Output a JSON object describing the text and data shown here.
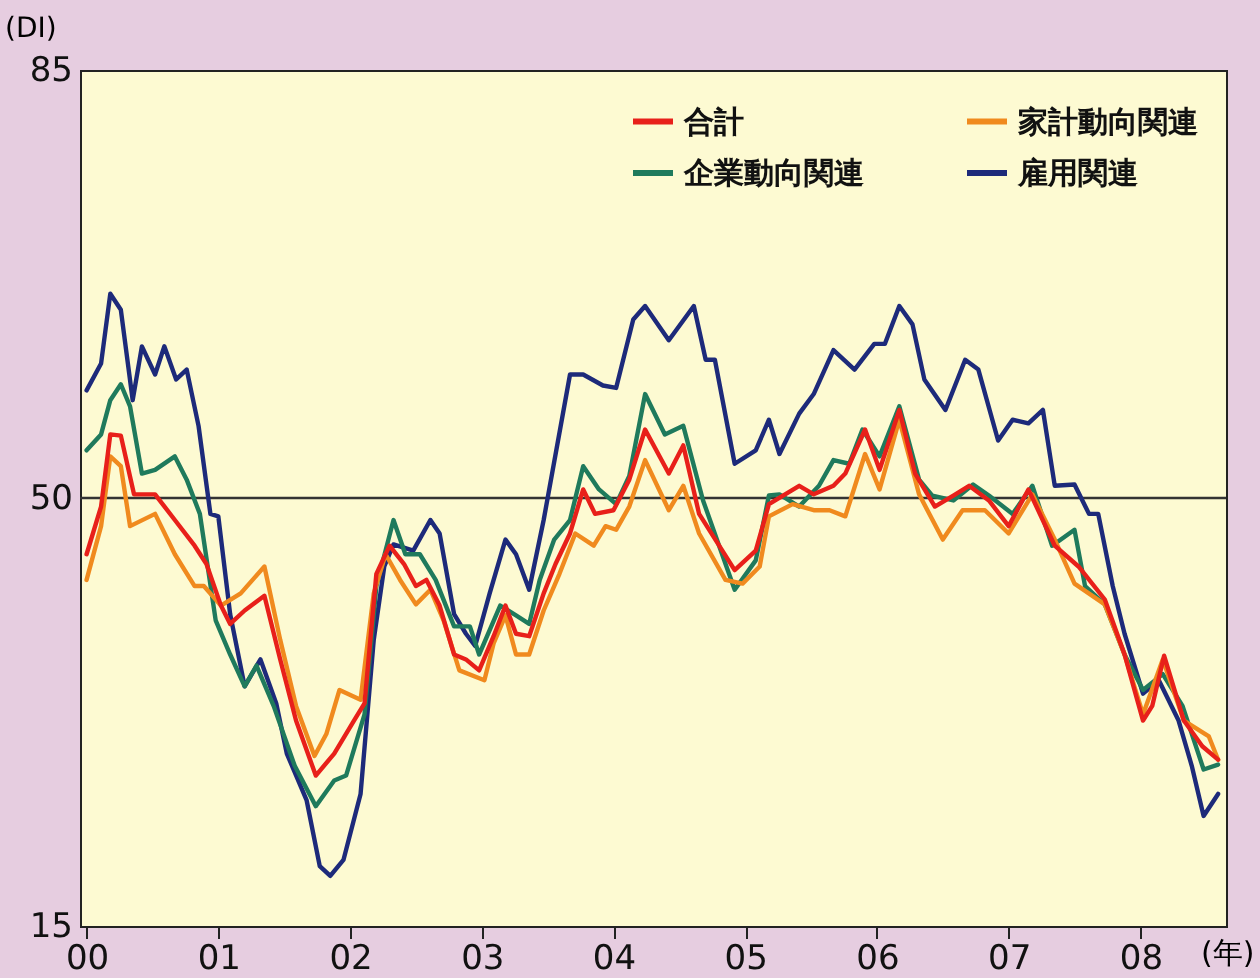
{
  "chart_data": {
    "type": "line",
    "ylabel": "(DI)",
    "xlabel": "(年)",
    "xlim": [
      1999.95,
      2008.65
    ],
    "ylim": [
      15,
      85
    ],
    "yticks": [
      15,
      50,
      85
    ],
    "xticks": [
      {
        "value": 2000,
        "label": "00"
      },
      {
        "value": 2001,
        "label": "01"
      },
      {
        "value": 2002,
        "label": "02"
      },
      {
        "value": 2003,
        "label": "03"
      },
      {
        "value": 2004,
        "label": "04"
      },
      {
        "value": 2005,
        "label": "05"
      },
      {
        "value": 2006,
        "label": "06"
      },
      {
        "value": 2007,
        "label": "07"
      },
      {
        "value": 2008,
        "label": "08"
      }
    ],
    "grid": false,
    "legend": "top right",
    "ref_lines": [
      {
        "axis": "y",
        "value": 50,
        "color": "#333333"
      }
    ],
    "series": [
      {
        "name": "合計",
        "color": "#e8201a",
        "x": [
          2000,
          2000.11,
          2000.18,
          2000.26,
          2000.36,
          2000.52,
          2000.67,
          2000.82,
          2000.91,
          2001.02,
          2001.09,
          2001.2,
          2001.35,
          2001.47,
          2001.59,
          2001.74,
          2001.88,
          2002.03,
          2002.11,
          2002.2,
          2002.3,
          2002.41,
          2002.5,
          2002.58,
          2002.68,
          2002.79,
          2002.88,
          2002.98,
          2003.09,
          2003.18,
          2003.26,
          2003.36,
          2003.47,
          2003.56,
          2003.67,
          2003.77,
          2003.86,
          2004,
          2004.12,
          2004.24,
          2004.42,
          2004.53,
          2004.65,
          2004.92,
          2005.08,
          2005.18,
          2005.41,
          2005.52,
          2005.67,
          2005.76,
          2005.91,
          2006.02,
          2006.17,
          2006.29,
          2006.44,
          2006.58,
          2006.7,
          2006.85,
          2007,
          2007.15,
          2007.35,
          2007.53,
          2007.73,
          2007.88,
          2008.02,
          2008.09,
          2008.18,
          2008.33,
          2008.47,
          2008.59
        ],
        "values": [
          45.4,
          49.3,
          55.2,
          55.1,
          50.3,
          50.3,
          48.2,
          46.1,
          44.6,
          41.2,
          39.7,
          40.8,
          42.0,
          36.8,
          31.8,
          27.3,
          29.1,
          31.8,
          33.2,
          43.8,
          46.1,
          44.6,
          42.8,
          43.3,
          41.2,
          37.2,
          36.8,
          35.9,
          38.7,
          41.2,
          38.9,
          38.7,
          42.2,
          44.6,
          47.1,
          50.7,
          48.7,
          49.0,
          51.5,
          55.6,
          52.0,
          54.3,
          48.7,
          44.1,
          45.7,
          49.5,
          51.0,
          50.3,
          51.0,
          52.0,
          55.6,
          52.3,
          57.2,
          52.0,
          49.3,
          50.2,
          51.0,
          49.8,
          47.7,
          50.7,
          46.1,
          44.4,
          41.7,
          37.2,
          31.8,
          33.0,
          37.1,
          31.8,
          29.7,
          28.6
        ]
      },
      {
        "name": "家計動向関連",
        "color": "#f08a1e",
        "x": [
          2000,
          2000.11,
          2000.18,
          2000.26,
          2000.33,
          2000.52,
          2000.67,
          2000.82,
          2000.89,
          2001.02,
          2001.17,
          2001.35,
          2001.47,
          2001.59,
          2001.73,
          2001.82,
          2001.92,
          2002.08,
          2002.18,
          2002.27,
          2002.38,
          2002.5,
          2002.61,
          2002.71,
          2002.83,
          2003.02,
          2003.09,
          2003.18,
          2003.26,
          2003.36,
          2003.47,
          2003.59,
          2003.71,
          2003.85,
          2003.94,
          2004.02,
          2004.12,
          2004.24,
          2004.42,
          2004.53,
          2004.65,
          2004.85,
          2004.98,
          2005.11,
          2005.18,
          2005.36,
          2005.52,
          2005.64,
          2005.76,
          2005.91,
          2006.02,
          2006.17,
          2006.32,
          2006.5,
          2006.65,
          2006.82,
          2007,
          2007.18,
          2007.35,
          2007.5,
          2007.73,
          2007.88,
          2008.02,
          2008.17,
          2008.33,
          2008.52,
          2008.59
        ],
        "values": [
          43.3,
          47.7,
          53.4,
          52.6,
          47.7,
          48.7,
          45.4,
          42.8,
          42.8,
          41.2,
          42.2,
          44.4,
          38.4,
          33.0,
          28.9,
          30.7,
          34.3,
          33.5,
          42.2,
          45.4,
          43.3,
          41.3,
          42.5,
          40.0,
          35.9,
          35.1,
          38.1,
          40.4,
          37.2,
          37.2,
          40.8,
          43.8,
          47.1,
          46.1,
          47.7,
          47.4,
          49.3,
          53.1,
          49.0,
          51.0,
          47.1,
          43.3,
          43.0,
          44.4,
          48.5,
          49.5,
          49.0,
          49.0,
          48.5,
          53.6,
          50.7,
          56.4,
          50.3,
          46.6,
          49.0,
          49.0,
          47.1,
          50.3,
          46.6,
          43.0,
          41.3,
          37.2,
          32.3,
          36.8,
          31.8,
          30.5,
          28.6
        ]
      },
      {
        "name": "企業動向関連",
        "color": "#1f7a5c",
        "x": [
          2000,
          2000.11,
          2000.18,
          2000.26,
          2000.33,
          2000.42,
          2000.52,
          2000.67,
          2000.76,
          2000.86,
          2000.98,
          2001.09,
          2001.2,
          2001.29,
          2001.42,
          2001.58,
          2001.74,
          2001.88,
          2001.97,
          2002.11,
          2002.2,
          2002.33,
          2002.42,
          2002.53,
          2002.65,
          2002.79,
          2002.91,
          2002.98,
          2003.14,
          2003.26,
          2003.36,
          2003.44,
          2003.55,
          2003.67,
          2003.77,
          2003.89,
          2004.02,
          2004.12,
          2004.24,
          2004.39,
          2004.53,
          2004.68,
          2004.92,
          2005.08,
          2005.18,
          2005.26,
          2005.41,
          2005.56,
          2005.67,
          2005.79,
          2005.89,
          2006.02,
          2006.17,
          2006.32,
          2006.42,
          2006.58,
          2006.73,
          2006.85,
          2007.03,
          2007.18,
          2007.33,
          2007.5,
          2007.58,
          2007.73,
          2007.88,
          2008.02,
          2008.17,
          2008.32,
          2008.48,
          2008.59
        ],
        "values": [
          53.9,
          55.2,
          58.0,
          59.3,
          57.5,
          52.0,
          52.3,
          53.4,
          51.5,
          48.7,
          40.0,
          37.2,
          34.6,
          36.3,
          33.0,
          28.1,
          24.8,
          26.9,
          27.3,
          32.3,
          42.8,
          48.2,
          45.4,
          45.4,
          43.3,
          39.5,
          39.5,
          37.2,
          41.2,
          40.4,
          39.7,
          43.3,
          46.6,
          48.2,
          52.6,
          50.7,
          49.5,
          51.8,
          58.5,
          55.2,
          55.9,
          49.8,
          42.5,
          44.9,
          50.2,
          50.3,
          49.3,
          51.0,
          53.1,
          52.8,
          55.6,
          53.4,
          57.5,
          51.5,
          50.2,
          49.8,
          51.1,
          50.2,
          48.7,
          51.0,
          46.1,
          47.4,
          42.8,
          41.3,
          37.2,
          34.3,
          35.6,
          33.0,
          27.8,
          28.2
        ]
      },
      {
        "name": "雇用関連",
        "color": "#1d2a7a",
        "x": [
          2000,
          2000.11,
          2000.18,
          2000.26,
          2000.35,
          2000.42,
          2000.52,
          2000.59,
          2000.68,
          2000.76,
          2000.85,
          2000.94,
          2001.0,
          2001.09,
          2001.2,
          2001.32,
          2001.44,
          2001.52,
          2001.67,
          2001.77,
          2001.85,
          2001.95,
          2002.08,
          2002.18,
          2002.26,
          2002.33,
          2002.48,
          2002.61,
          2002.68,
          2002.79,
          2002.88,
          2002.95,
          2003.06,
          2003.18,
          2003.26,
          2003.36,
          2003.47,
          2003.67,
          2003.77,
          2003.92,
          2004.02,
          2004.15,
          2004.24,
          2004.42,
          2004.61,
          2004.7,
          2004.77,
          2004.92,
          2005.08,
          2005.18,
          2005.26,
          2005.41,
          2005.52,
          2005.67,
          2005.83,
          2005.98,
          2006.06,
          2006.17,
          2006.27,
          2006.36,
          2006.52,
          2006.67,
          2006.77,
          2006.92,
          2007.03,
          2007.15,
          2007.26,
          2007.35,
          2007.5,
          2007.61,
          2007.68,
          2007.79,
          2007.88,
          2008.02,
          2008.14,
          2008.29,
          2008.39,
          2008.48,
          2008.59
        ],
        "values": [
          58.8,
          61.0,
          66.7,
          65.4,
          58.0,
          62.4,
          60.1,
          62.4,
          59.7,
          60.5,
          55.9,
          48.7,
          48.5,
          40.5,
          34.6,
          36.8,
          33.2,
          29.1,
          25.3,
          19.9,
          19.1,
          20.4,
          25.8,
          38.4,
          44.4,
          46.2,
          45.7,
          48.2,
          47.1,
          40.5,
          38.9,
          37.9,
          42.2,
          46.6,
          45.4,
          42.5,
          48.2,
          60.1,
          60.1,
          59.2,
          59.0,
          64.6,
          65.7,
          62.9,
          65.7,
          61.3,
          61.3,
          52.8,
          53.9,
          56.4,
          53.6,
          56.9,
          58.5,
          62.1,
          60.5,
          62.6,
          62.6,
          65.7,
          64.2,
          59.7,
          57.2,
          61.3,
          60.5,
          54.7,
          56.4,
          56.1,
          57.2,
          51.0,
          51.1,
          48.7,
          48.7,
          42.8,
          38.9,
          34.0,
          35.1,
          31.8,
          28.1,
          24.0,
          25.8
        ]
      }
    ]
  }
}
